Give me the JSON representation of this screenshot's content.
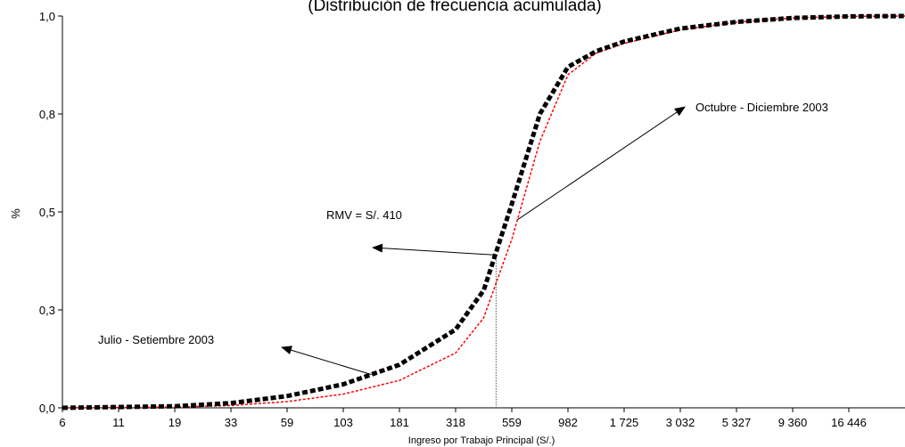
{
  "chart_data": {
    "type": "line",
    "title": "(Distribución de frecuencia acumulada)",
    "xlabel": "Ingreso por Trabajo Principal (S/.)",
    "ylabel": "%",
    "xscale": "log",
    "x_ticks": [
      "6",
      "11",
      "19",
      "33",
      "59",
      "103",
      "181",
      "318",
      "559",
      "982",
      "1 725",
      "3 032",
      "5 327",
      "9 360",
      "16 446"
    ],
    "y_ticks": [
      "0,0",
      "0,3",
      "0,5",
      "0,8",
      "1,0"
    ],
    "ylim": [
      0,
      1
    ],
    "grid": false,
    "series": [
      {
        "name": "Julio - Setiembre 2003",
        "color": "#000000",
        "style": "thick-dashed",
        "points": [
          [
            0,
            0.0
          ],
          [
            1,
            0.002
          ],
          [
            2,
            0.004
          ],
          [
            3,
            0.012
          ],
          [
            4,
            0.03
          ],
          [
            5,
            0.06
          ],
          [
            6,
            0.11
          ],
          [
            7,
            0.2
          ],
          [
            7.5,
            0.3
          ],
          [
            8,
            0.52
          ],
          [
            8.5,
            0.75
          ],
          [
            9,
            0.87
          ],
          [
            9.5,
            0.91
          ],
          [
            10,
            0.935
          ],
          [
            11,
            0.968
          ],
          [
            12,
            0.985
          ],
          [
            13,
            0.995
          ],
          [
            14,
            0.999
          ],
          [
            15,
            1.0
          ]
        ]
      },
      {
        "name": "Octubre - Diciembre 2003",
        "color": "#ff0000",
        "style": "dotted",
        "points": [
          [
            0,
            0.0
          ],
          [
            1,
            0.001
          ],
          [
            2,
            0.002
          ],
          [
            3,
            0.006
          ],
          [
            4,
            0.016
          ],
          [
            5,
            0.035
          ],
          [
            6,
            0.07
          ],
          [
            7,
            0.14
          ],
          [
            7.5,
            0.23
          ],
          [
            8,
            0.43
          ],
          [
            8.5,
            0.68
          ],
          [
            9,
            0.85
          ],
          [
            9.5,
            0.905
          ],
          [
            10,
            0.93
          ],
          [
            11,
            0.965
          ],
          [
            12,
            0.984
          ],
          [
            13,
            0.995
          ],
          [
            14,
            0.999
          ],
          [
            15,
            1.0
          ]
        ]
      }
    ],
    "annotations": [
      {
        "text": "RMV = S/. 410",
        "x": 7.72,
        "y": 0.39
      },
      {
        "text": "Julio - Setiembre 2003",
        "series": 0
      },
      {
        "text": "Octubre - Diciembre 2003",
        "series": 1
      }
    ]
  }
}
